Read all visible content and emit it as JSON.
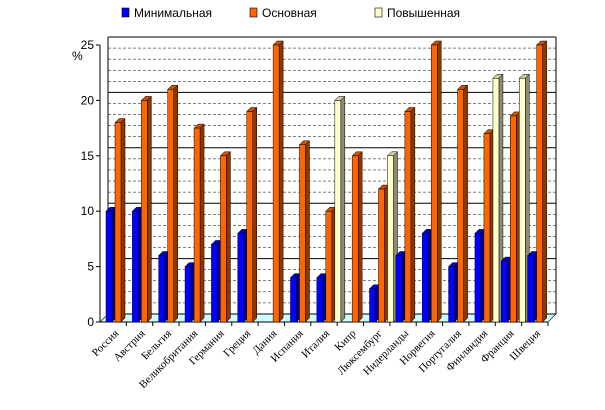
{
  "chart_data": {
    "type": "bar",
    "title": "",
    "ylabel": "%",
    "ylim": [
      0,
      25
    ],
    "yticks": [
      0,
      5,
      10,
      15,
      20,
      25
    ],
    "legend_position": "top",
    "categories": [
      "Россия",
      "Австрия",
      "Бельгия",
      "Великобритания",
      "Германия",
      "Греция",
      "Дания",
      "Испания",
      "Италия",
      "Кипр",
      "Люксембург",
      "Нидерланды",
      "Норвегия",
      "Португалия",
      "Финляндия",
      "Франция",
      "Швеция"
    ],
    "series": [
      {
        "name": "Минимальная",
        "color": "#0000ff",
        "values": [
          10,
          10,
          6,
          5,
          7,
          8,
          0,
          4,
          4,
          0,
          3,
          6,
          8,
          5,
          8,
          5.5,
          6
        ]
      },
      {
        "name": "Основная",
        "color": "#ff6600",
        "values": [
          18,
          20,
          21,
          17.5,
          15,
          19,
          25,
          16,
          10,
          15,
          12,
          19,
          25,
          21,
          17,
          18.6,
          25
        ]
      },
      {
        "name": "Повышенная",
        "color": "#ffffcc",
        "values": [
          0,
          0,
          0,
          0,
          0,
          0,
          0,
          0,
          20,
          0,
          15,
          0,
          0,
          0,
          22,
          22,
          0
        ]
      }
    ]
  }
}
